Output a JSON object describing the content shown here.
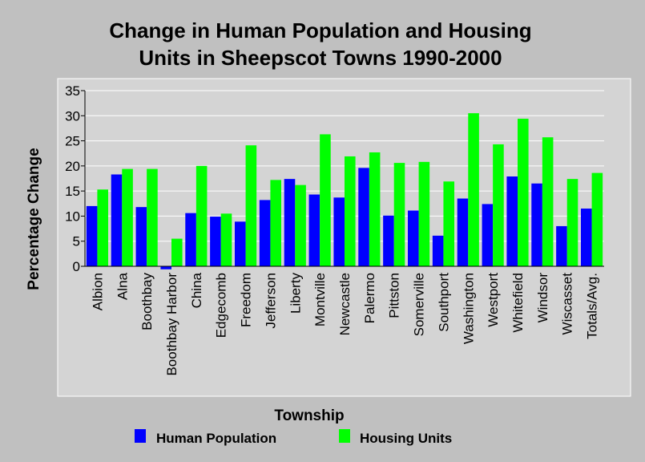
{
  "chart_data": {
    "type": "bar",
    "title_lines": [
      "Change in Human Population and Housing",
      "Units in Sheepscot Towns 1990-2000"
    ],
    "xlabel": "Township",
    "ylabel": "Percentage Change",
    "ylim": [
      0,
      35
    ],
    "yticks": [
      0,
      5,
      10,
      15,
      20,
      25,
      30,
      35
    ],
    "grid": true,
    "legend_position": "bottom",
    "categories": [
      "Albion",
      "Alna",
      "Boothbay",
      "Boothbay Harbor",
      "China",
      "Edgecomb",
      "Freedom",
      "Jefferson",
      "Liberty",
      "Montville",
      "Newcastle",
      "Palermo",
      "Pittston",
      "Somerville",
      "Southport",
      "Washington",
      "Westport",
      "Whitefield",
      "Windsor",
      "Wiscasset",
      "Totals/Avg."
    ],
    "series": [
      {
        "name": "Human Population",
        "color": "#0000ff",
        "values": [
          12.0,
          18.3,
          11.8,
          -0.6,
          10.6,
          9.9,
          8.9,
          13.2,
          17.4,
          14.3,
          13.7,
          19.6,
          10.1,
          11.1,
          6.1,
          13.5,
          12.4,
          17.9,
          16.5,
          8.0,
          11.5
        ]
      },
      {
        "name": "Housing Units",
        "color": "#00ff00",
        "values": [
          15.3,
          19.4,
          19.4,
          5.5,
          20.0,
          10.5,
          24.1,
          17.2,
          16.2,
          26.3,
          21.9,
          22.7,
          20.6,
          20.8,
          16.9,
          30.5,
          24.3,
          29.4,
          25.7,
          17.4,
          18.6
        ]
      }
    ]
  }
}
